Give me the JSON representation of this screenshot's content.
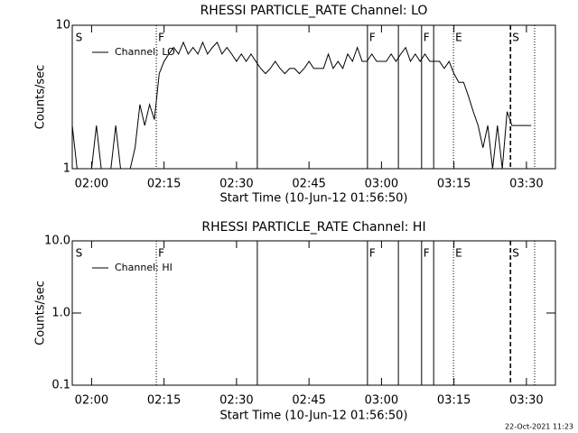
{
  "chart_data": [
    {
      "type": "line",
      "title": "RHESSI PARTICLE_RATE Channel: LO",
      "xlabel": "Start Time (10-Jun-12 01:56:50)",
      "ylabel": "Counts/sec",
      "xlim": [
        116,
        216
      ],
      "xticks": [
        {
          "value": 120,
          "label": "02:00"
        },
        {
          "value": 135,
          "label": "02:15"
        },
        {
          "value": 150,
          "label": "02:30"
        },
        {
          "value": 165,
          "label": "02:45"
        },
        {
          "value": 180,
          "label": "03:00"
        },
        {
          "value": 195,
          "label": "03:15"
        },
        {
          "value": 210,
          "label": "03:30"
        }
      ],
      "ylim": [
        1,
        10
      ],
      "yticks": [
        1,
        10
      ],
      "log_y": true,
      "legend": "upper left",
      "x": [
        116,
        117,
        118,
        119,
        120,
        121,
        122,
        123,
        124,
        125,
        126,
        127,
        128,
        129,
        130,
        131,
        132,
        133,
        134,
        135,
        136,
        137,
        138,
        139,
        140,
        141,
        142,
        143,
        144,
        145,
        146,
        147,
        148,
        149,
        150,
        151,
        152,
        153,
        154,
        155,
        156,
        157,
        158,
        159,
        160,
        161,
        162,
        163,
        164,
        165,
        166,
        167,
        168,
        169,
        170,
        171,
        172,
        173,
        174,
        175,
        176,
        177,
        178,
        179,
        180,
        181,
        182,
        183,
        184,
        185,
        186,
        187,
        188,
        189,
        190,
        191,
        192,
        193,
        194,
        195,
        196,
        197,
        198,
        199,
        200,
        201,
        202,
        203,
        204,
        205,
        206,
        207,
        208,
        209,
        210,
        211
      ],
      "series": [
        {
          "name": "Channel: LO",
          "color": "#000000",
          "values": [
            2,
            1,
            1,
            1,
            1,
            2,
            1,
            1,
            1,
            2,
            1,
            1,
            1,
            1.4,
            2.8,
            2,
            2.8,
            2.2,
            4.6,
            5.6,
            6.3,
            7,
            6.3,
            7.6,
            6.3,
            7,
            6.3,
            7.6,
            6.3,
            7,
            7.6,
            6.3,
            7,
            6.3,
            5.6,
            6.3,
            5.6,
            6.3,
            5.6,
            5,
            4.6,
            5,
            5.6,
            5,
            4.6,
            5,
            5,
            4.6,
            5,
            5.6,
            5,
            5,
            5,
            6.3,
            5,
            5.6,
            5,
            6.3,
            5.6,
            7,
            5.6,
            5.6,
            6.3,
            5.6,
            5.6,
            5.6,
            6.3,
            5.6,
            6.3,
            7,
            5.6,
            6.3,
            5.6,
            6.3,
            5.6,
            5.6,
            5.6,
            5,
            5.6,
            4.6,
            4,
            4,
            3.2,
            2.5,
            2,
            1.4,
            2,
            1,
            2,
            1,
            2.5,
            2,
            2,
            2,
            2,
            2
          ]
        }
      ],
      "vlines": [
        {
          "x": 133.4,
          "style": "dotted"
        },
        {
          "x": 154.3,
          "style": "solid"
        },
        {
          "x": 177.1,
          "style": "solid"
        },
        {
          "x": 183.5,
          "style": "solid"
        },
        {
          "x": 188.3,
          "style": "solid"
        },
        {
          "x": 190.8,
          "style": "solid"
        },
        {
          "x": 194.9,
          "style": "dotted"
        },
        {
          "x": 206.7,
          "style": "dashed"
        },
        {
          "x": 211.7,
          "style": "dotted"
        }
      ],
      "flags": [
        {
          "x": 116.3,
          "label": "S"
        },
        {
          "x": 133.4,
          "label": "F"
        },
        {
          "x": 177.1,
          "label": "F"
        },
        {
          "x": 188.3,
          "label": "F"
        },
        {
          "x": 194.9,
          "label": "E"
        },
        {
          "x": 206.7,
          "label": "S"
        }
      ]
    },
    {
      "type": "line",
      "title": "RHESSI PARTICLE_RATE Channel: HI",
      "xlabel": "Start Time (10-Jun-12 01:56:50)",
      "ylabel": "Counts/sec",
      "xlim": [
        116,
        216
      ],
      "xticks": [
        {
          "value": 120,
          "label": "02:00"
        },
        {
          "value": 135,
          "label": "02:15"
        },
        {
          "value": 150,
          "label": "02:30"
        },
        {
          "value": 165,
          "label": "02:45"
        },
        {
          "value": 180,
          "label": "03:00"
        },
        {
          "value": 195,
          "label": "03:15"
        },
        {
          "value": 210,
          "label": "03:30"
        }
      ],
      "ylim": [
        0.1,
        10
      ],
      "yticks": [
        {
          "value": 0.1,
          "label": "0.1"
        },
        {
          "value": 1,
          "label": "1.0"
        },
        {
          "value": 10,
          "label": "10.0"
        }
      ],
      "log_y": true,
      "legend": "upper left",
      "x": [],
      "series": [
        {
          "name": "Channel: HI",
          "color": "#000000",
          "values": []
        }
      ],
      "vlines": [
        {
          "x": 133.4,
          "style": "dotted"
        },
        {
          "x": 154.3,
          "style": "solid"
        },
        {
          "x": 177.1,
          "style": "solid"
        },
        {
          "x": 183.5,
          "style": "solid"
        },
        {
          "x": 188.3,
          "style": "solid"
        },
        {
          "x": 190.8,
          "style": "solid"
        },
        {
          "x": 194.9,
          "style": "dotted"
        },
        {
          "x": 206.7,
          "style": "dashed"
        },
        {
          "x": 211.7,
          "style": "dotted"
        }
      ],
      "flags": [
        {
          "x": 116.3,
          "label": "S"
        },
        {
          "x": 133.4,
          "label": "F"
        },
        {
          "x": 177.1,
          "label": "F"
        },
        {
          "x": 188.3,
          "label": "F"
        },
        {
          "x": 194.9,
          "label": "E"
        },
        {
          "x": 206.7,
          "label": "S"
        }
      ]
    }
  ],
  "footer": "22-Oct-2021 11:23"
}
